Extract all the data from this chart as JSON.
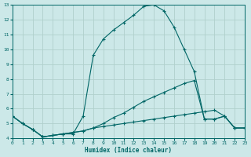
{
  "xlabel": "Humidex (Indice chaleur)",
  "bg_color": "#cce8e8",
  "grid_color": "#b0d0cc",
  "line_color": "#006666",
  "xlim": [
    0,
    23
  ],
  "ylim": [
    4,
    13
  ],
  "xticks": [
    0,
    1,
    2,
    3,
    4,
    5,
    6,
    7,
    8,
    9,
    10,
    11,
    12,
    13,
    14,
    15,
    16,
    17,
    18,
    19,
    20,
    21,
    22,
    23
  ],
  "yticks": [
    4,
    5,
    6,
    7,
    8,
    9,
    10,
    11,
    12,
    13
  ],
  "curve1_x": [
    0,
    1,
    2,
    3,
    4,
    5,
    6,
    7,
    8,
    9,
    10,
    11,
    12,
    13,
    14,
    15,
    16,
    17,
    18,
    19,
    20,
    21,
    22,
    23
  ],
  "curve1_y": [
    5.5,
    5.0,
    4.6,
    4.1,
    4.2,
    4.3,
    4.3,
    5.5,
    9.6,
    10.7,
    11.3,
    11.8,
    12.3,
    12.9,
    13.0,
    12.6,
    11.5,
    10.0,
    8.5,
    5.3,
    5.3,
    5.5,
    4.7,
    4.7
  ],
  "curve2_x": [
    0,
    1,
    2,
    3,
    4,
    5,
    6,
    7,
    8,
    9,
    10,
    11,
    12,
    13,
    14,
    15,
    16,
    17,
    18,
    19,
    20,
    21,
    22,
    23
  ],
  "curve2_y": [
    5.5,
    5.0,
    4.6,
    4.1,
    4.2,
    4.3,
    4.4,
    4.5,
    4.7,
    5.0,
    5.4,
    5.7,
    6.1,
    6.5,
    6.8,
    7.1,
    7.4,
    7.7,
    7.9,
    5.3,
    5.3,
    5.5,
    4.7,
    4.7
  ],
  "curve3_x": [
    0,
    1,
    2,
    3,
    4,
    5,
    6,
    7,
    8,
    9,
    10,
    11,
    12,
    13,
    14,
    15,
    16,
    17,
    18,
    19,
    20,
    21,
    22,
    23
  ],
  "curve3_y": [
    5.5,
    5.0,
    4.6,
    4.1,
    4.2,
    4.3,
    4.4,
    4.5,
    4.7,
    4.8,
    4.9,
    5.0,
    5.1,
    5.2,
    5.3,
    5.4,
    5.5,
    5.6,
    5.7,
    5.8,
    5.9,
    5.5,
    4.7,
    4.7
  ]
}
